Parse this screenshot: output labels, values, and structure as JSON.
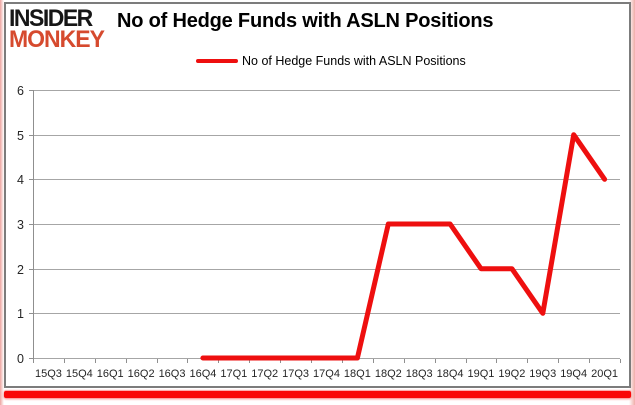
{
  "logo": {
    "line1": "INSIDER",
    "line2": "MONKEY"
  },
  "title": "No of Hedge Funds with ASLN Positions",
  "legend": {
    "label": "No of Hedge Funds with ASLN Positions"
  },
  "colors": {
    "series_red": "#ee0f0f",
    "logo_black": "#161616",
    "logo_red": "#d64a2e",
    "bottom_bar_red": "#f90606",
    "edge_pink": "#f0aca8",
    "grid_gray": "#a6a6a6",
    "axis_gray": "#8f8f8f",
    "tick_label": "#262626"
  },
  "chart_data": {
    "type": "line",
    "title": "No of Hedge Funds with ASLN Positions",
    "categories": [
      "15Q3",
      "15Q4",
      "16Q1",
      "16Q2",
      "16Q3",
      "16Q4",
      "17Q1",
      "17Q2",
      "17Q3",
      "17Q4",
      "18Q1",
      "18Q2",
      "18Q3",
      "18Q4",
      "19Q1",
      "19Q2",
      "19Q3",
      "19Q4",
      "20Q1"
    ],
    "series": [
      {
        "name": "No of Hedge Funds with ASLN Positions",
        "color": "#ee0f0f",
        "values": [
          null,
          null,
          null,
          null,
          null,
          0,
          0,
          0,
          0,
          0,
          0,
          3,
          3,
          3,
          2,
          2,
          1,
          5,
          4
        ]
      }
    ],
    "xlabel": "",
    "ylabel": "",
    "ylim": [
      0,
      6
    ],
    "yticks": [
      0,
      1,
      2,
      3,
      4,
      5,
      6
    ],
    "grid": true,
    "legend_position": "top"
  }
}
